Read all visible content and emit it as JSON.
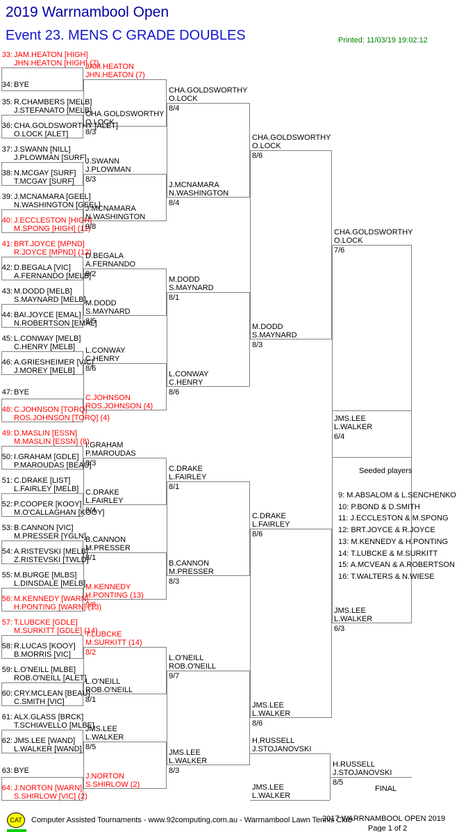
{
  "header": {
    "title": "2019 Warrnambool Open",
    "event": "Event 23. MENS C GRADE DOUBLES",
    "printed": "Printed: 11/03/19 19:02:12"
  },
  "colors": {
    "title": "#0000a0",
    "event": "#1414cc",
    "printed_green": "#008000",
    "seed_red": "#ff0000",
    "text": "#000000",
    "line": "#808080",
    "logo_yellow": "#ffff00",
    "green_bar": "#00cc00"
  },
  "bracket": {
    "entries": [
      {
        "num": "33:",
        "players": [
          "JAM.HEATON [HIGH]",
          "JHN.HEATON [HIGH] (7)"
        ],
        "seeded": true
      },
      {
        "num": "34:",
        "players": [
          "BYE"
        ]
      },
      {
        "num": "35:",
        "players": [
          "R.CHAMBERS [MELB]",
          "J.STEFANATO [MELB]"
        ]
      },
      {
        "num": "36:",
        "players": [
          "CHA.GOLDSWORTHY [ALET]",
          "O.LOCK [ALET]"
        ]
      },
      {
        "num": "37:",
        "players": [
          "J.SWANN [NILL]",
          "J.PLOWMAN [SURF]"
        ]
      },
      {
        "num": "38:",
        "players": [
          "N.MCGAY [SURF]",
          "T.MCGAY [SURF]"
        ]
      },
      {
        "num": "39:",
        "players": [
          "J.MCNAMARA [GEEL]",
          "N.WASHINGTON [GEEL]"
        ]
      },
      {
        "num": "40:",
        "players": [
          "J.ECCLESTON [HIGH]",
          "M.SPONG [HIGH] (11)"
        ],
        "seeded": true
      },
      {
        "num": "41:",
        "players": [
          "BRT.JOYCE [MPND]",
          "R.JOYCE [MPND] (12)"
        ],
        "seeded": true
      },
      {
        "num": "42:",
        "players": [
          "D.BEGALA [VIC]",
          "A.FERNANDO [MELB]"
        ]
      },
      {
        "num": "43:",
        "players": [
          "M.DODD [MELB]",
          "S.MAYNARD [MELB]"
        ]
      },
      {
        "num": "44:",
        "players": [
          "BAI.JOYCE [EMAL]",
          "N.ROBERTSON [EMAL]"
        ]
      },
      {
        "num": "45:",
        "players": [
          "L.CONWAY [MELB]",
          "C.HENRY [MELB]"
        ]
      },
      {
        "num": "46:",
        "players": [
          "A.GRIESHEIMER [VIC]",
          "J.MOREY [MELB]"
        ]
      },
      {
        "num": "47:",
        "players": [
          "BYE"
        ]
      },
      {
        "num": "48:",
        "players": [
          "C.JOHNSON [TORQ]",
          "ROS.JOHNSON [TORQ] (4)"
        ],
        "seeded": true
      },
      {
        "num": "49:",
        "players": [
          "D.MASLIN [ESSN]",
          "M.MASLIN [ESSN] (8)"
        ],
        "seeded": true
      },
      {
        "num": "50:",
        "players": [
          "I.GRAHAM [GDLE]",
          "P.MAROUDAS [BEAU]"
        ]
      },
      {
        "num": "51:",
        "players": [
          "C.DRAKE [LIST]",
          "L.FAIRLEY [MELB]"
        ]
      },
      {
        "num": "52:",
        "players": [
          "P.COOPER [KOOY]",
          "M.O'CALLAGHAN [KOOY]"
        ]
      },
      {
        "num": "53:",
        "players": [
          "B.CANNON [VIC]",
          "M.PRESSER [YGLN]"
        ]
      },
      {
        "num": "54:",
        "players": [
          "A.RISTEVSKI [MELB]",
          "Z.RISTEVSKI [TWLD]"
        ]
      },
      {
        "num": "55:",
        "players": [
          "M.BURGE [MLBS]",
          "L.DINSDALE [MELB]"
        ]
      },
      {
        "num": "56:",
        "players": [
          "M.KENNEDY [WARN]",
          "H.PONTING [WARN] (13)"
        ],
        "seeded": true
      },
      {
        "num": "57:",
        "players": [
          "T.LUBCKE [GDLE]",
          "M.SURKITT [GDLE] (14)"
        ],
        "seeded": true
      },
      {
        "num": "58:",
        "players": [
          "R.LUCAS [KOOY]",
          "B.MORRIS [VIC]"
        ]
      },
      {
        "num": "59:",
        "players": [
          "L.O'NEILL [MLBE]",
          "ROB.O'NEILL [ALET]"
        ]
      },
      {
        "num": "60:",
        "players": [
          "CRY.MCLEAN [BEAU]",
          "C.SMITH [VIC]"
        ]
      },
      {
        "num": "61:",
        "players": [
          "ALX.GLASS [BRCK]",
          "T.SCHIAVELLO [MLBE]"
        ]
      },
      {
        "num": "62:",
        "players": [
          "JMS.LEE [WAND]",
          "L.WALKER [WAND]"
        ]
      },
      {
        "num": "63:",
        "players": [
          "BYE"
        ]
      },
      {
        "num": "64:",
        "players": [
          "J.NORTON [WARN]",
          "S.SHIRLOW [VIC] (2)"
        ],
        "seeded": true
      }
    ],
    "round1": [
      {
        "players": [
          "JAM.HEATON",
          "JHN.HEATON (7)"
        ],
        "score": "",
        "seeded": true
      },
      {
        "players": [
          "CHA.GOLDSWORTHY",
          "O.LOCK"
        ],
        "score": "8/3"
      },
      {
        "players": [
          "J.SWANN",
          "J.PLOWMAN"
        ],
        "score": "8/3"
      },
      {
        "players": [
          "J.MCNAMARA",
          "N.WASHINGTON"
        ],
        "score": "9/8"
      },
      {
        "players": [
          "D.BEGALA",
          "A.FERNANDO"
        ],
        "score": "8/2"
      },
      {
        "players": [
          "M.DODD",
          "S.MAYNARD"
        ],
        "score": "8/5"
      },
      {
        "players": [
          "L.CONWAY",
          "C.HENRY"
        ],
        "score": "8/6"
      },
      {
        "players": [
          "C.JOHNSON",
          "ROS.JOHNSON (4)"
        ],
        "score": "",
        "seeded": true
      },
      {
        "players": [
          "I.GRAHAM",
          "P.MAROUDAS"
        ],
        "score": "8/3"
      },
      {
        "players": [
          "C.DRAKE",
          "L.FAIRLEY"
        ],
        "score": "8/4"
      },
      {
        "players": [
          "B.CANNON",
          "M.PRESSER"
        ],
        "score": "8/1"
      },
      {
        "players": [
          "M.KENNEDY",
          "H.PONTING (13)"
        ],
        "score": "9/8",
        "seeded": true
      },
      {
        "players": [
          "T.LUBCKE",
          "M.SURKITT (14)"
        ],
        "score": "8/2",
        "seeded": true
      },
      {
        "players": [
          "L.O'NEILL",
          "ROB.O'NEILL"
        ],
        "score": "8/1"
      },
      {
        "players": [
          "JMS.LEE",
          "L.WALKER"
        ],
        "score": "8/5"
      },
      {
        "players": [
          "J.NORTON",
          "S.SHIRLOW (2)"
        ],
        "score": "",
        "seeded": true
      }
    ],
    "round2": [
      {
        "players": [
          "CHA.GOLDSWORTHY",
          "O.LOCK"
        ],
        "score": "8/4"
      },
      {
        "players": [
          "J.MCNAMARA",
          "N.WASHINGTON"
        ],
        "score": "8/4"
      },
      {
        "players": [
          "M.DODD",
          "S.MAYNARD"
        ],
        "score": "8/1"
      },
      {
        "players": [
          "L.CONWAY",
          "C.HENRY"
        ],
        "score": "8/6"
      },
      {
        "players": [
          "C.DRAKE",
          "L.FAIRLEY"
        ],
        "score": "8/1"
      },
      {
        "players": [
          "B.CANNON",
          "M.PRESSER"
        ],
        "score": "8/3"
      },
      {
        "players": [
          "L.O'NEILL",
          "ROB.O'NEILL"
        ],
        "score": "9/7"
      },
      {
        "players": [
          "JMS.LEE",
          "L.WALKER"
        ],
        "score": "8/3"
      }
    ],
    "round3": [
      {
        "players": [
          "CHA.GOLDSWORTHY",
          "O.LOCK"
        ],
        "score": "8/6"
      },
      {
        "players": [
          "M.DODD",
          "S.MAYNARD"
        ],
        "score": "8/3"
      },
      {
        "players": [
          "C.DRAKE",
          "L.FAIRLEY"
        ],
        "score": "8/6"
      },
      {
        "players": [
          "JMS.LEE",
          "L.WALKER"
        ],
        "score": "8/6"
      }
    ],
    "round4": [
      {
        "players": [
          "CHA.GOLDSWORTHY",
          "O.LOCK"
        ],
        "score": "7/6"
      },
      {
        "players": [
          "JMS.LEE",
          "L.WALKER"
        ],
        "score": "6/3"
      }
    ],
    "semifinal_winner": {
      "players": [
        "JMS.LEE",
        "L.WALKER"
      ],
      "score": "6/4"
    },
    "final": {
      "team1": [
        "H.RUSSELL",
        "J.STOJANOVSKI"
      ],
      "team2": [
        "JMS.LEE",
        "L.WALKER"
      ],
      "winner": [
        "H.RUSSELL",
        "J.STOJANOVSKI"
      ],
      "score": "8/5",
      "label": "FINAL"
    },
    "seeded_players": {
      "heading": "Seeded players",
      "items": [
        "9: M.ABSALOM & L.SENCHENKO",
        "10: P.BOND & D.SMITH",
        "11: J.ECCLESTON & M.SPONG",
        "12: BRT.JOYCE & R.JOYCE",
        "13: M.KENNEDY & H.PONTING",
        "14: T.LUBCKE & M.SURKITT",
        "15: A.MCVEAN & A.ROBERTSON",
        "16: T.WALTERS & N.WIESE"
      ]
    }
  },
  "footer": {
    "logo_text": "CAT",
    "credit": "Computer Assisted Tournaments - www.92computing.com.au -  Warrnambool Lawn Tennis Club",
    "tournament": "2017 WARRNAMBOOL OPEN 2019",
    "page": "Page 1 of 2"
  }
}
